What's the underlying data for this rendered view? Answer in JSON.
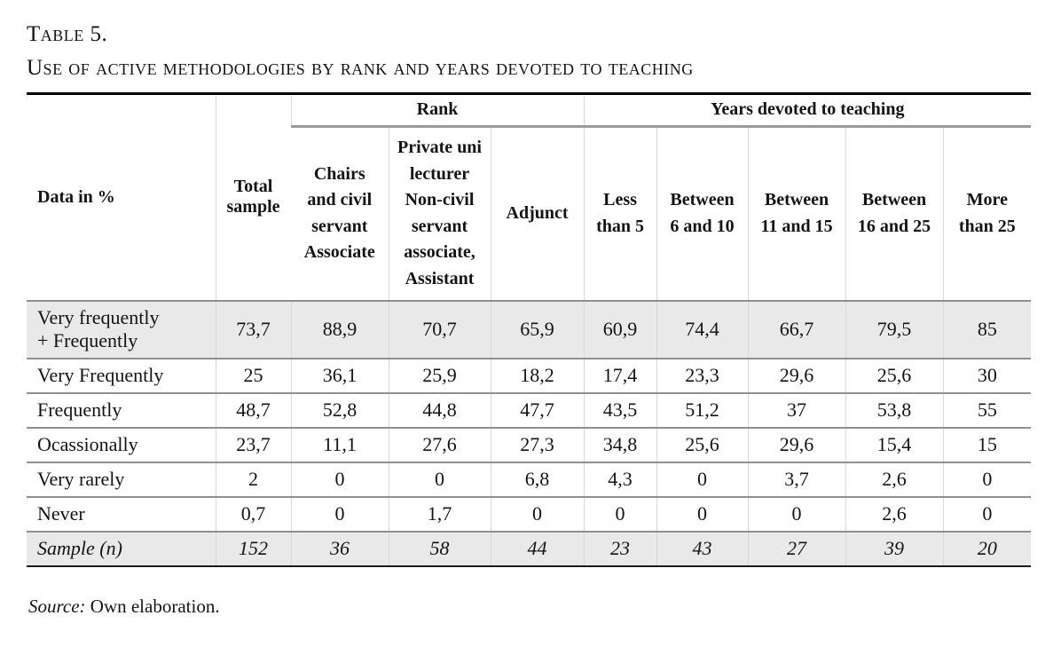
{
  "title": {
    "line1": "Table 5.",
    "line2": "Use of active methodologies by rank and years devoted to teaching"
  },
  "table": {
    "corner_header": "Data in %",
    "groups": [
      {
        "label": "Rank",
        "span": 3
      },
      {
        "label": "Years devoted to teaching",
        "span": 5
      }
    ],
    "columns": [
      "Total\nsample",
      "Chairs\nand civil\nservant\nAssociate",
      "Private uni\nlecturer\nNon-civil\nservant\nassociate,\nAssistant",
      "Adjunct",
      "Less\nthan 5",
      "Between\n6 and 10",
      "Between\n11 and 15",
      "Between\n16 and 25",
      "More\nthan 25"
    ],
    "rows": [
      {
        "label": "Very frequently\n+ Frequently",
        "shaded": true,
        "italic": false,
        "values": [
          "73,7",
          "88,9",
          "70,7",
          "65,9",
          "60,9",
          "74,4",
          "66,7",
          "79,5",
          "85"
        ]
      },
      {
        "label": "Very Frequently",
        "shaded": false,
        "italic": false,
        "values": [
          "25",
          "36,1",
          "25,9",
          "18,2",
          "17,4",
          "23,3",
          "29,6",
          "25,6",
          "30"
        ]
      },
      {
        "label": "Frequently",
        "shaded": false,
        "italic": false,
        "values": [
          "48,7",
          "52,8",
          "44,8",
          "47,7",
          "43,5",
          "51,2",
          "37",
          "53,8",
          "55"
        ]
      },
      {
        "label": "Ocassionally",
        "shaded": false,
        "italic": false,
        "values": [
          "23,7",
          "11,1",
          "27,6",
          "27,3",
          "34,8",
          "25,6",
          "29,6",
          "15,4",
          "15"
        ]
      },
      {
        "label": "Very rarely",
        "shaded": false,
        "italic": false,
        "values": [
          "2",
          "0",
          "0",
          "6,8",
          "4,3",
          "0",
          "3,7",
          "2,6",
          "0"
        ]
      },
      {
        "label": "Never",
        "shaded": false,
        "italic": false,
        "values": [
          "0,7",
          "0",
          "1,7",
          "0",
          "0",
          "0",
          "0",
          "2,6",
          "0"
        ]
      },
      {
        "label": "Sample (n)",
        "shaded": true,
        "italic": true,
        "values": [
          "152",
          "36",
          "58",
          "44",
          "23",
          "43",
          "27",
          "39",
          "20"
        ]
      }
    ]
  },
  "source": {
    "prefix": "Source:",
    "text": "Own elaboration."
  }
}
